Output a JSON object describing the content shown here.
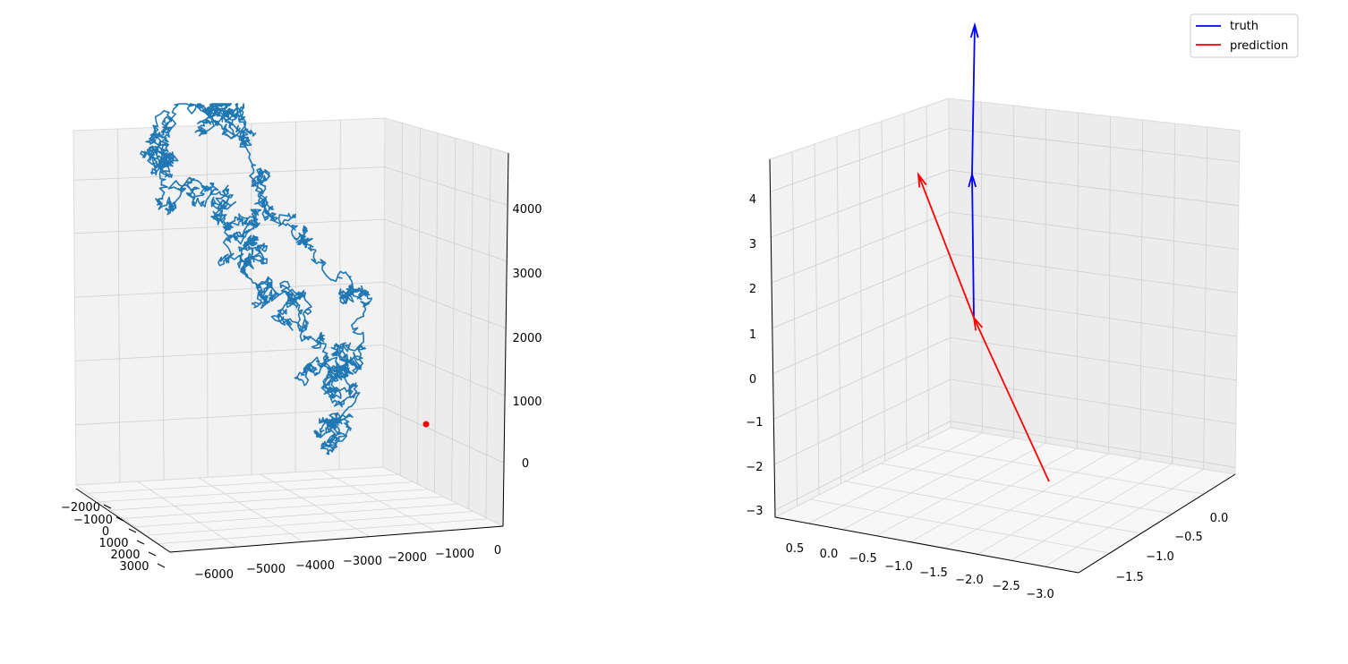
{
  "chart_data": [
    {
      "type": "line",
      "projection": "3d",
      "title": "",
      "series": [
        {
          "color": "#1f77b4",
          "kind": "random-walk trajectory",
          "x": [
            -200,
            600,
            1600,
            1900,
            2400,
            2600,
            2200,
            1500,
            1000,
            500,
            200,
            -500,
            -900,
            -1300,
            -1500,
            -1200,
            -500,
            300,
            700
          ],
          "y": [
            -1400,
            -1700,
            -2200,
            -2700,
            -3100,
            -3600,
            -4100,
            -4400,
            -4500,
            -5300,
            -5900,
            -5800,
            -4800,
            -4000,
            -3200,
            -2700,
            -2200,
            -1700,
            -1300
          ],
          "z": [
            0,
            200,
            500,
            900,
            1400,
            1900,
            2300,
            2700,
            3100,
            3400,
            3700,
            4100,
            4500,
            4700,
            4400,
            3700,
            2800,
            1800,
            900
          ]
        },
        {
          "color": "#ff0000",
          "kind": "current point",
          "x": [
            200
          ],
          "y": [
            -1300
          ],
          "z": [
            0
          ]
        }
      ],
      "xticks": [
        "−2000",
        "−1000",
        "0",
        "1000",
        "2000",
        "3000"
      ],
      "yticks": [
        "−6000",
        "−5000",
        "−4000",
        "−3000",
        "−2000",
        "−1000",
        "0"
      ],
      "zticks": [
        "0",
        "1000",
        "2000",
        "3000",
        "4000"
      ],
      "xlim": [
        -2500,
        3500
      ],
      "ylim": [
        -6500,
        500
      ],
      "zlim": [
        -1000,
        4800
      ],
      "grid": true
    },
    {
      "type": "quiver",
      "projection": "3d",
      "title": "",
      "legend": {
        "placement": "top-right",
        "entries": [
          {
            "label": "truth",
            "color": "#0000ff"
          },
          {
            "label": "prediction",
            "color": "#ff0000"
          }
        ]
      },
      "series": [
        {
          "name": "truth",
          "color": "#0000ff",
          "arrows": [
            {
              "start": [
                -0.2,
                -0.1,
                1.0
              ],
              "end": [
                -0.2,
                -0.1,
                3.6
              ]
            },
            {
              "start": [
                -0.2,
                -0.1,
                3.6
              ],
              "end": [
                -0.2,
                -0.1,
                5.8
              ]
            }
          ]
        },
        {
          "name": "prediction",
          "color": "#ff0000",
          "arrows": [
            {
              "start": [
                -1.8,
                -1.3,
                -2.8
              ],
              "end": [
                -0.2,
                -0.1,
                1.0
              ]
            },
            {
              "start": [
                -0.2,
                -0.1,
                1.0
              ],
              "end": [
                0.6,
                -0.1,
                3.8
              ]
            }
          ]
        }
      ],
      "xticks": [
        "0.5",
        "0.0",
        "−0.5",
        "−1.0",
        "−1.5",
        "−2.0",
        "−2.5",
        "−3.0"
      ],
      "yticks": [
        "0.0",
        "−0.5",
        "−1.0",
        "−1.5"
      ],
      "zticks": [
        "−3",
        "−2",
        "−1",
        "0",
        "1",
        "2",
        "3",
        "4"
      ],
      "grid": true
    }
  ]
}
